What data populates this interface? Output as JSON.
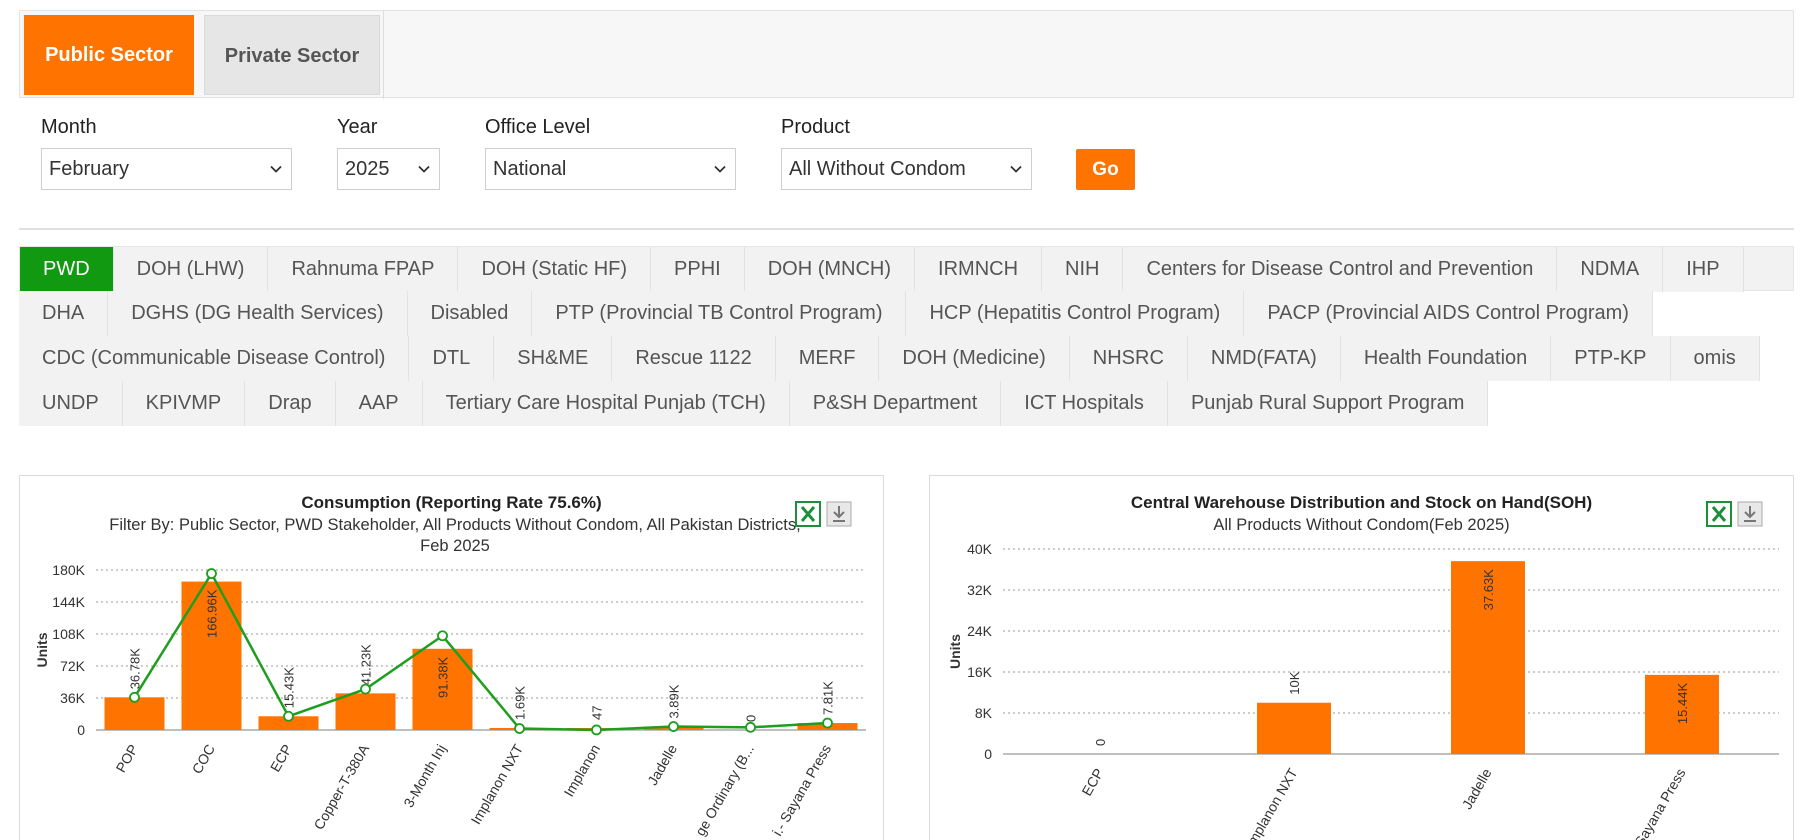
{
  "sector_tabs": {
    "public": "Public Sector",
    "private": "Private Sector"
  },
  "filters": {
    "month": {
      "label": "Month",
      "value": "February"
    },
    "year": {
      "label": "Year",
      "value": "2025"
    },
    "office_level": {
      "label": "Office Level",
      "value": "National"
    },
    "product": {
      "label": "Product",
      "value": "All Without Condom"
    },
    "go_label": "Go"
  },
  "stakeholder_tabs": [
    [
      "PWD",
      "DOH (LHW)",
      "Rahnuma FPAP",
      "DOH (Static HF)",
      "PPHI",
      "DOH (MNCH)",
      "IRMNCH",
      "NIH",
      "Centers for Disease Control and Prevention",
      "NDMA",
      "IHP"
    ],
    [
      "DHA",
      "DGHS (DG Health Services)",
      "Disabled",
      "PTP (Provincial TB Control Program)",
      "HCP (Hepatitis Control Program)",
      "PACP (Provincial AIDS Control Program)"
    ],
    [
      "CDC (Communicable Disease Control)",
      "DTL",
      "SH&ME",
      "Rescue 1122",
      "MERF",
      "DOH (Medicine)",
      "NHSRC",
      "NMD(FATA)",
      "Health Foundation",
      "PTP-KP",
      "omis"
    ],
    [
      "UNDP",
      "KPIVMP",
      "Drap",
      "AAP",
      "Tertiary Care Hospital Punjab (TCH)",
      "P&SH Department",
      "ICT Hospitals",
      "Punjab Rural Support Program"
    ]
  ],
  "active_stakeholder": "PWD",
  "colors": {
    "accent": "#ff7300",
    "active_tab": "#129912",
    "line": "#1e9e1e",
    "excel": "#1d8f3a"
  },
  "chart_data": [
    {
      "type": "bar",
      "title": "Consumption (Reporting Rate 75.6%)",
      "subtitle_lines": [
        "Filter By: Public Sector, PWD Stakeholder, All Products Without Condom, All Pakistan Districts,",
        "Feb 2025"
      ],
      "ylabel": "Units",
      "ylim": [
        0,
        180000
      ],
      "yticks": [
        "0",
        "36K",
        "72K",
        "108K",
        "144K",
        "180K"
      ],
      "categories": [
        "POP",
        "COC",
        "ECP",
        "Copper-T-380A",
        "3-Month Inj",
        "Implanon NXT",
        "Implanon",
        "Jadelle",
        "ge Ordinary (B...",
        "i.- Sayana Press"
      ],
      "values": [
        36780,
        166960,
        15430,
        41230,
        91380,
        1690,
        47,
        3890,
        0,
        7810
      ],
      "data_labels": [
        "36.78K",
        "166.96K",
        "15.43K",
        "41.23K",
        "91.38K",
        "1.69K",
        "47",
        "3.89K",
        "0",
        "7.81K"
      ],
      "line_values": [
        36780,
        176000,
        15430,
        46000,
        106000,
        1690,
        47,
        3890,
        3000,
        7810
      ]
    },
    {
      "type": "bar",
      "title": "Central Warehouse Distribution and Stock on Hand(SOH)",
      "subtitle_lines": [
        "All Products Without Condom(Feb 2025)"
      ],
      "ylabel": "Units",
      "ylim": [
        0,
        40000
      ],
      "yticks": [
        "0",
        "8K",
        "16K",
        "24K",
        "32K",
        "40K"
      ],
      "categories": [
        "ECP",
        "Implanon NXT",
        "Jadelle",
        "Sayana Press"
      ],
      "values": [
        0,
        10000,
        37630,
        15440
      ],
      "data_labels": [
        "0",
        "10K",
        "37.63K",
        "15.44K"
      ]
    }
  ]
}
